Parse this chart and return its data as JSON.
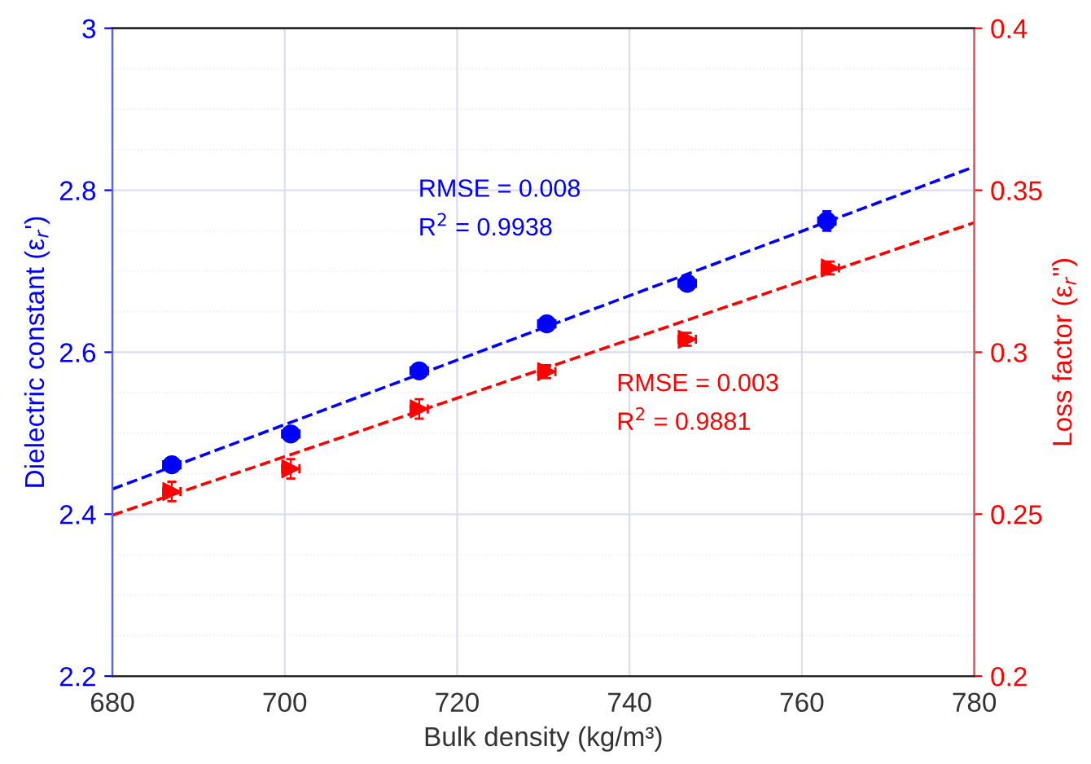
{
  "chart_data": {
    "type": "scatter",
    "xlabel": "Bulk density (kg/m³)",
    "ylabel": "Dielectric constant (ε$_{r}$')",
    "y2label": "Loss factor (ε$_{r}$'')",
    "xlim": [
      680,
      780
    ],
    "xticks": [
      680,
      700,
      720,
      740,
      760,
      780
    ],
    "ylim": [
      2.2,
      3
    ],
    "yticks": [
      2.2,
      2.4,
      2.6,
      2.8,
      3
    ],
    "y2lim": [
      0.2,
      0.4
    ],
    "y2ticks": [
      0.2,
      0.25,
      0.3,
      0.35,
      0.4
    ],
    "grid": true,
    "series": [
      {
        "axis": "y",
        "color": "#0000ff",
        "marker": "circle",
        "x": [
          686.9,
          700.7,
          715.6,
          730.4,
          746.7,
          762.9
        ],
        "values": [
          2.461,
          2.499,
          2.577,
          2.635,
          2.685,
          2.762
        ],
        "errors": [
          0.006,
          0.006,
          0.006,
          0.005,
          0.005,
          0.012
        ],
        "xerrors": [
          1,
          1,
          1,
          1,
          1,
          1
        ]
      },
      {
        "axis": "y2",
        "color": "#ff0000",
        "marker": "triangle",
        "x": [
          686.9,
          700.7,
          715.6,
          730.4,
          746.7,
          763.3
        ],
        "values": [
          0.257,
          0.264,
          0.2825,
          0.294,
          0.304,
          0.326
        ],
        "errors": [
          0.003,
          0.003,
          0.003,
          0.002,
          0.002,
          0.002
        ],
        "xerrors": [
          1,
          1,
          1,
          1,
          1,
          1
        ]
      },
      {
        "type": "line",
        "axis": "y",
        "color": "#0000ff",
        "line_style": "dashed",
        "x": [
          680,
          780
        ],
        "values": [
          2.431,
          2.829
        ]
      },
      {
        "type": "line",
        "axis": "y2",
        "color": "#ff0000",
        "line_style": "dashed",
        "x": [
          680,
          780
        ],
        "values": [
          0.2497,
          0.34
        ]
      }
    ],
    "annotations": [
      "RMSE = 0.008",
      "R$^{2}$ = 0.9938",
      "RMSE = 0.003",
      "R$^{2}$ = 0.9881"
    ]
  }
}
